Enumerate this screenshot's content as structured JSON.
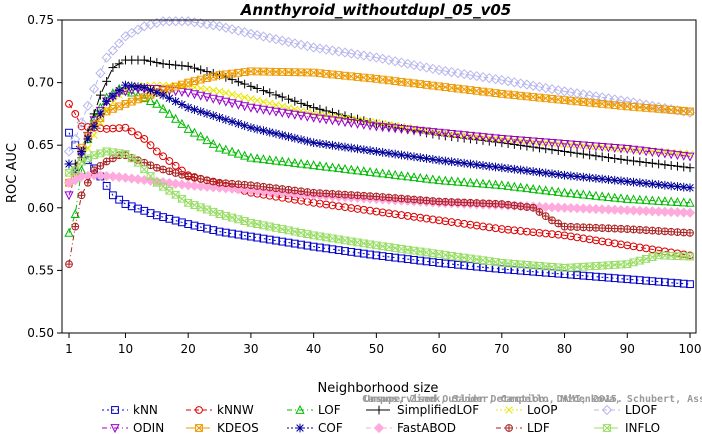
{
  "chart_data": {
    "type": "line",
    "title": "Annthyroid_withoutdupl_05_v05",
    "xlabel": "Neighborhood size",
    "ylabel": "ROC AUC",
    "xlim": [
      1,
      100
    ],
    "ylim": [
      0.5,
      0.75
    ],
    "xticks": [
      1,
      10,
      20,
      30,
      40,
      50,
      60,
      70,
      80,
      90,
      100
    ],
    "yticks": [
      "0.50",
      "0.55",
      "0.60",
      "0.65",
      "0.70",
      "0.75"
    ],
    "grid": false,
    "legend_position": "bottom",
    "watermark": [
      "Campos, Zimek, Sander, Campello, Micenkova, Schubert, Assent, Houle",
      "Unsupervised Outlier Detection. DAMI, 2015."
    ],
    "series": [
      {
        "name": "kNN",
        "color": "#0000cc",
        "marker": "square",
        "dash": "2,3",
        "points": [
          [
            1,
            0.66
          ],
          [
            2,
            0.65
          ],
          [
            3,
            0.645
          ],
          [
            4,
            0.638
          ],
          [
            6,
            0.625
          ],
          [
            8,
            0.61
          ],
          [
            10,
            0.603
          ],
          [
            15,
            0.594
          ],
          [
            20,
            0.587
          ],
          [
            25,
            0.581
          ],
          [
            30,
            0.577
          ],
          [
            40,
            0.569
          ],
          [
            50,
            0.562
          ],
          [
            60,
            0.556
          ],
          [
            70,
            0.551
          ],
          [
            80,
            0.547
          ],
          [
            90,
            0.543
          ],
          [
            100,
            0.539
          ]
        ]
      },
      {
        "name": "kNNW",
        "color": "#dd0000",
        "marker": "circle",
        "dash": "5,3",
        "points": [
          [
            1,
            0.683
          ],
          [
            2,
            0.675
          ],
          [
            3,
            0.665
          ],
          [
            5,
            0.664
          ],
          [
            7,
            0.663
          ],
          [
            10,
            0.664
          ],
          [
            13,
            0.655
          ],
          [
            15,
            0.645
          ],
          [
            20,
            0.626
          ],
          [
            30,
            0.612
          ],
          [
            40,
            0.604
          ],
          [
            50,
            0.597
          ],
          [
            60,
            0.59
          ],
          [
            70,
            0.583
          ],
          [
            80,
            0.578
          ],
          [
            90,
            0.57
          ],
          [
            100,
            0.562
          ]
        ]
      },
      {
        "name": "LOF",
        "color": "#00bb00",
        "marker": "triangle",
        "dash": "5,3,1,3",
        "points": [
          [
            1,
            0.58
          ],
          [
            2,
            0.595
          ],
          [
            3,
            0.63
          ],
          [
            4,
            0.655
          ],
          [
            5,
            0.672
          ],
          [
            7,
            0.688
          ],
          [
            9,
            0.695
          ],
          [
            11,
            0.692
          ],
          [
            15,
            0.683
          ],
          [
            20,
            0.663
          ],
          [
            25,
            0.648
          ],
          [
            30,
            0.64
          ],
          [
            40,
            0.634
          ],
          [
            50,
            0.628
          ],
          [
            60,
            0.622
          ],
          [
            70,
            0.618
          ],
          [
            80,
            0.612
          ],
          [
            90,
            0.607
          ],
          [
            100,
            0.604
          ]
        ]
      },
      {
        "name": "SimplifiedLOF",
        "color": "#000000",
        "marker": "plus",
        "dash": "10,4",
        "points": [
          [
            1,
            0.635
          ],
          [
            2,
            0.635
          ],
          [
            3,
            0.64
          ],
          [
            4,
            0.66
          ],
          [
            5,
            0.675
          ],
          [
            6,
            0.69
          ],
          [
            8,
            0.712
          ],
          [
            10,
            0.718
          ],
          [
            13,
            0.718
          ],
          [
            16,
            0.715
          ],
          [
            20,
            0.713
          ],
          [
            25,
            0.706
          ],
          [
            30,
            0.697
          ],
          [
            40,
            0.68
          ],
          [
            50,
            0.667
          ],
          [
            60,
            0.658
          ],
          [
            70,
            0.652
          ],
          [
            80,
            0.645
          ],
          [
            90,
            0.638
          ],
          [
            100,
            0.632
          ]
        ]
      },
      {
        "name": "LoOP",
        "color": "#e8e800",
        "marker": "x",
        "dash": "2,2",
        "points": [
          [
            1,
            0.62
          ],
          [
            2,
            0.625
          ],
          [
            3,
            0.637
          ],
          [
            5,
            0.658
          ],
          [
            7,
            0.678
          ],
          [
            9,
            0.69
          ],
          [
            11,
            0.697
          ],
          [
            15,
            0.698
          ],
          [
            20,
            0.697
          ],
          [
            25,
            0.693
          ],
          [
            30,
            0.687
          ],
          [
            40,
            0.675
          ],
          [
            50,
            0.668
          ],
          [
            60,
            0.66
          ],
          [
            70,
            0.655
          ],
          [
            80,
            0.651
          ],
          [
            90,
            0.647
          ],
          [
            100,
            0.643
          ]
        ]
      },
      {
        "name": "LDOF",
        "color": "#b8b8ee",
        "marker": "diamond",
        "dash": "5,3",
        "points": [
          [
            1,
            0.645
          ],
          [
            2,
            0.655
          ],
          [
            3,
            0.668
          ],
          [
            5,
            0.695
          ],
          [
            7,
            0.72
          ],
          [
            10,
            0.737
          ],
          [
            13,
            0.745
          ],
          [
            16,
            0.749
          ],
          [
            20,
            0.749
          ],
          [
            25,
            0.745
          ],
          [
            30,
            0.739
          ],
          [
            40,
            0.728
          ],
          [
            50,
            0.72
          ],
          [
            60,
            0.71
          ],
          [
            70,
            0.702
          ],
          [
            80,
            0.693
          ],
          [
            90,
            0.685
          ],
          [
            100,
            0.676
          ]
        ]
      },
      {
        "name": "ODIN",
        "color": "#9900cc",
        "marker": "triangle-down",
        "dash": "5,3,1,3",
        "points": [
          [
            1,
            0.61
          ],
          [
            2,
            0.625
          ],
          [
            3,
            0.645
          ],
          [
            5,
            0.67
          ],
          [
            7,
            0.685
          ],
          [
            9,
            0.692
          ],
          [
            12,
            0.695
          ],
          [
            15,
            0.695
          ],
          [
            20,
            0.692
          ],
          [
            25,
            0.686
          ],
          [
            30,
            0.68
          ],
          [
            40,
            0.672
          ],
          [
            50,
            0.665
          ],
          [
            60,
            0.66
          ],
          [
            70,
            0.655
          ],
          [
            80,
            0.651
          ],
          [
            90,
            0.647
          ],
          [
            100,
            0.641
          ]
        ]
      },
      {
        "name": "KDEOS",
        "color": "#ee9900",
        "marker": "square-x",
        "dash": "10,4",
        "points": [
          [
            1,
            0.62
          ],
          [
            2,
            0.63
          ],
          [
            3,
            0.648
          ],
          [
            5,
            0.666
          ],
          [
            7,
            0.677
          ],
          [
            10,
            0.683
          ],
          [
            15,
            0.692
          ],
          [
            20,
            0.7
          ],
          [
            25,
            0.706
          ],
          [
            30,
            0.709
          ],
          [
            40,
            0.708
          ],
          [
            50,
            0.703
          ],
          [
            60,
            0.697
          ],
          [
            70,
            0.691
          ],
          [
            80,
            0.686
          ],
          [
            90,
            0.681
          ],
          [
            100,
            0.677
          ]
        ]
      },
      {
        "name": "COF",
        "color": "#000099",
        "marker": "asterisk",
        "dash": "2,2",
        "points": [
          [
            1,
            0.635
          ],
          [
            2,
            0.63
          ],
          [
            3,
            0.645
          ],
          [
            5,
            0.665
          ],
          [
            7,
            0.685
          ],
          [
            10,
            0.698
          ],
          [
            13,
            0.696
          ],
          [
            16,
            0.69
          ],
          [
            20,
            0.68
          ],
          [
            25,
            0.672
          ],
          [
            30,
            0.664
          ],
          [
            40,
            0.652
          ],
          [
            50,
            0.645
          ],
          [
            60,
            0.638
          ],
          [
            70,
            0.632
          ],
          [
            80,
            0.626
          ],
          [
            90,
            0.621
          ],
          [
            100,
            0.616
          ]
        ]
      },
      {
        "name": "FastABOD",
        "color": "#ffaadd",
        "marker": "diamond-filled",
        "dash": "5,3",
        "points": [
          [
            1,
            0.62
          ],
          [
            2,
            0.622
          ],
          [
            3,
            0.625
          ],
          [
            5,
            0.626
          ],
          [
            8,
            0.625
          ],
          [
            10,
            0.624
          ],
          [
            15,
            0.621
          ],
          [
            20,
            0.618
          ],
          [
            30,
            0.614
          ],
          [
            40,
            0.61
          ],
          [
            50,
            0.607
          ],
          [
            60,
            0.604
          ],
          [
            70,
            0.602
          ],
          [
            80,
            0.6
          ],
          [
            90,
            0.598
          ],
          [
            100,
            0.596
          ]
        ]
      },
      {
        "name": "LDF",
        "color": "#aa2222",
        "marker": "circle-plus",
        "dash": "5,3,1,3",
        "points": [
          [
            1,
            0.555
          ],
          [
            2,
            0.585
          ],
          [
            3,
            0.61
          ],
          [
            5,
            0.63
          ],
          [
            7,
            0.637
          ],
          [
            9,
            0.642
          ],
          [
            10,
            0.642
          ],
          [
            15,
            0.632
          ],
          [
            20,
            0.625
          ],
          [
            25,
            0.62
          ],
          [
            30,
            0.618
          ],
          [
            40,
            0.612
          ],
          [
            50,
            0.609
          ],
          [
            60,
            0.605
          ],
          [
            70,
            0.603
          ],
          [
            75,
            0.6
          ],
          [
            78,
            0.59
          ],
          [
            80,
            0.585
          ],
          [
            90,
            0.583
          ],
          [
            100,
            0.58
          ]
        ]
      },
      {
        "name": "INFLO",
        "color": "#99dd66",
        "marker": "hourglass",
        "dash": "10,4",
        "points": [
          [
            1,
            0.628
          ],
          [
            2,
            0.63
          ],
          [
            3,
            0.637
          ],
          [
            5,
            0.642
          ],
          [
            7,
            0.645
          ],
          [
            10,
            0.643
          ],
          [
            12,
            0.636
          ],
          [
            15,
            0.62
          ],
          [
            20,
            0.604
          ],
          [
            25,
            0.595
          ],
          [
            30,
            0.588
          ],
          [
            40,
            0.578
          ],
          [
            50,
            0.57
          ],
          [
            60,
            0.563
          ],
          [
            70,
            0.556
          ],
          [
            80,
            0.552
          ],
          [
            90,
            0.555
          ],
          [
            95,
            0.562
          ],
          [
            100,
            0.561
          ]
        ]
      }
    ]
  }
}
